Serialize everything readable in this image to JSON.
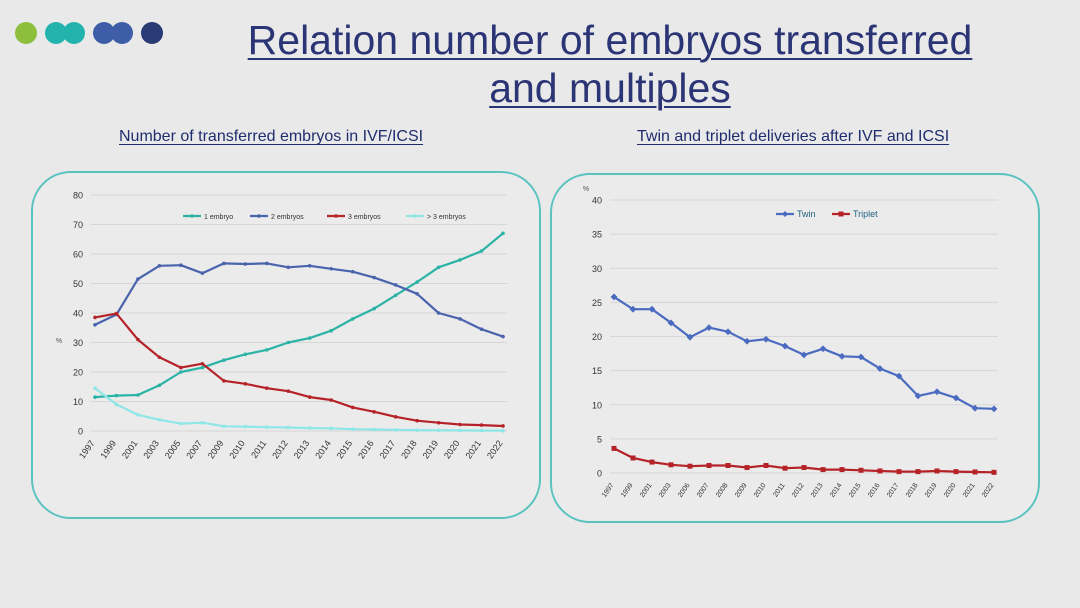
{
  "slide": {
    "title_line1": "Relation number of embryos transferred",
    "title_line2": "and multiples",
    "dot_colors": [
      "#8dbf3c",
      "#22b3ad",
      "#22b3ad",
      "#3e5da8",
      "#3e5da8",
      "#2a3a74"
    ]
  },
  "left_panel": {
    "subtitle": "Number of transferred embryos in IVF/ICSI"
  },
  "right_panel": {
    "subtitle": "Twin and triplet deliveries after IVF and ICSI"
  },
  "chart_data": [
    {
      "type": "line",
      "title": "Number of transferred embryos in IVF/ICSI",
      "ylabel": "%",
      "xlabel": "",
      "ylim": [
        0,
        80
      ],
      "yticks": [
        0,
        10,
        20,
        30,
        40,
        50,
        60,
        70,
        80
      ],
      "categories": [
        "1997",
        "1999",
        "2001",
        "2003",
        "2005",
        "2007",
        "2009",
        "2010",
        "2011",
        "2012",
        "2013",
        "2014",
        "2015",
        "2016",
        "2017",
        "2018",
        "2019",
        "2020",
        "2021",
        "2022"
      ],
      "legend_position": "top",
      "series": [
        {
          "name": "1 embryo",
          "color": "#2bb3a6",
          "values": [
            11.5,
            12,
            12.2,
            15.5,
            20,
            21.5,
            24,
            26,
            27.5,
            30,
            31.5,
            34,
            38,
            41.5,
            46,
            50.5,
            55.5,
            58,
            61,
            67
          ]
        },
        {
          "name": "2 embryos",
          "color": "#4a63ad",
          "values": [
            36,
            39.5,
            51.5,
            56,
            56.2,
            53.5,
            56.8,
            56.6,
            56.8,
            55.5,
            56,
            55,
            54,
            52,
            49.5,
            46.5,
            40,
            38,
            34.5,
            32
          ]
        },
        {
          "name": "3 embryos",
          "color": "#b52228",
          "values": [
            38.5,
            39.8,
            31,
            25,
            21.5,
            22.8,
            17,
            16,
            14.5,
            13.5,
            11.5,
            10.5,
            8,
            6.5,
            4.8,
            3.5,
            2.8,
            2.2,
            2,
            1.7
          ]
        },
        {
          "name": "> 3 embryos",
          "color": "#8fe6e6",
          "values": [
            14.5,
            9,
            5.5,
            3.8,
            2.5,
            2.8,
            1.6,
            1.5,
            1.3,
            1.2,
            1,
            0.9,
            0.6,
            0.5,
            0.4,
            0.3,
            0.2,
            0.2,
            0.15,
            0.1
          ]
        }
      ]
    },
    {
      "type": "line",
      "title": "Twin and triplet deliveries after IVF and ICSI",
      "ylabel": "%",
      "xlabel": "",
      "ylim": [
        0,
        40
      ],
      "yticks": [
        0,
        5,
        10,
        15,
        20,
        25,
        30,
        35,
        40
      ],
      "categories": [
        "1997",
        "1999",
        "2001",
        "2003",
        "2006",
        "2007",
        "2008",
        "2009",
        "2010",
        "2011",
        "2012",
        "2013",
        "2014",
        "2015",
        "2016",
        "2017",
        "2018",
        "2019",
        "2020",
        "2021",
        "2022"
      ],
      "legend_position": "top",
      "series": [
        {
          "name": "Twin",
          "color": "#4a6bbf",
          "marker": "diamond",
          "values": [
            25.8,
            24,
            24,
            22,
            19.9,
            21.3,
            20.7,
            19.3,
            19.6,
            18.6,
            17.3,
            18.2,
            17.1,
            17,
            15.3,
            14.2,
            11.3,
            11.9,
            11,
            9.5,
            9.4
          ]
        },
        {
          "name": "Triplet",
          "color": "#b52228",
          "marker": "square",
          "values": [
            3.6,
            2.2,
            1.6,
            1.2,
            1,
            1.1,
            1.1,
            0.8,
            1.1,
            0.7,
            0.8,
            0.5,
            0.5,
            0.4,
            0.3,
            0.2,
            0.2,
            0.3,
            0.2,
            0.15,
            0.1
          ]
        }
      ]
    }
  ]
}
